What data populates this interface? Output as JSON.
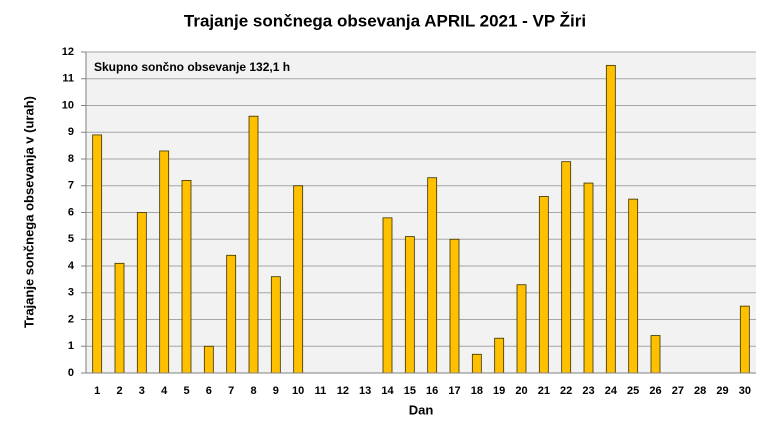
{
  "chart_data": {
    "type": "bar",
    "title": "Trajanje  sončnega obsevanja  APRIL 2021 - VP Žiri",
    "annotation": "Skupno sončno obsevanje 132,1 h",
    "x_label": "Dan",
    "y_label": "Trajanje  sončnega obsevanja  v (urah)",
    "categories": [
      "1",
      "2",
      "3",
      "4",
      "5",
      "6",
      "7",
      "8",
      "9",
      "10",
      "11",
      "12",
      "13",
      "14",
      "15",
      "16",
      "17",
      "18",
      "19",
      "20",
      "21",
      "22",
      "23",
      "24",
      "25",
      "26",
      "27",
      "28",
      "29",
      "30"
    ],
    "values": [
      8.9,
      4.1,
      6.0,
      8.3,
      7.2,
      1.0,
      4.4,
      9.6,
      3.6,
      7.0,
      0,
      0,
      0,
      5.8,
      5.1,
      7.3,
      5.0,
      0.7,
      1.3,
      3.3,
      6.6,
      7.9,
      7.1,
      11.5,
      6.5,
      1.4,
      0,
      0,
      0,
      2.5
    ],
    "color": "#ffc000",
    "ylim": [
      0,
      12
    ],
    "yticks": [
      0,
      1,
      2,
      3,
      4,
      5,
      6,
      7,
      8,
      9,
      10,
      11,
      12
    ],
    "grid": true
  }
}
